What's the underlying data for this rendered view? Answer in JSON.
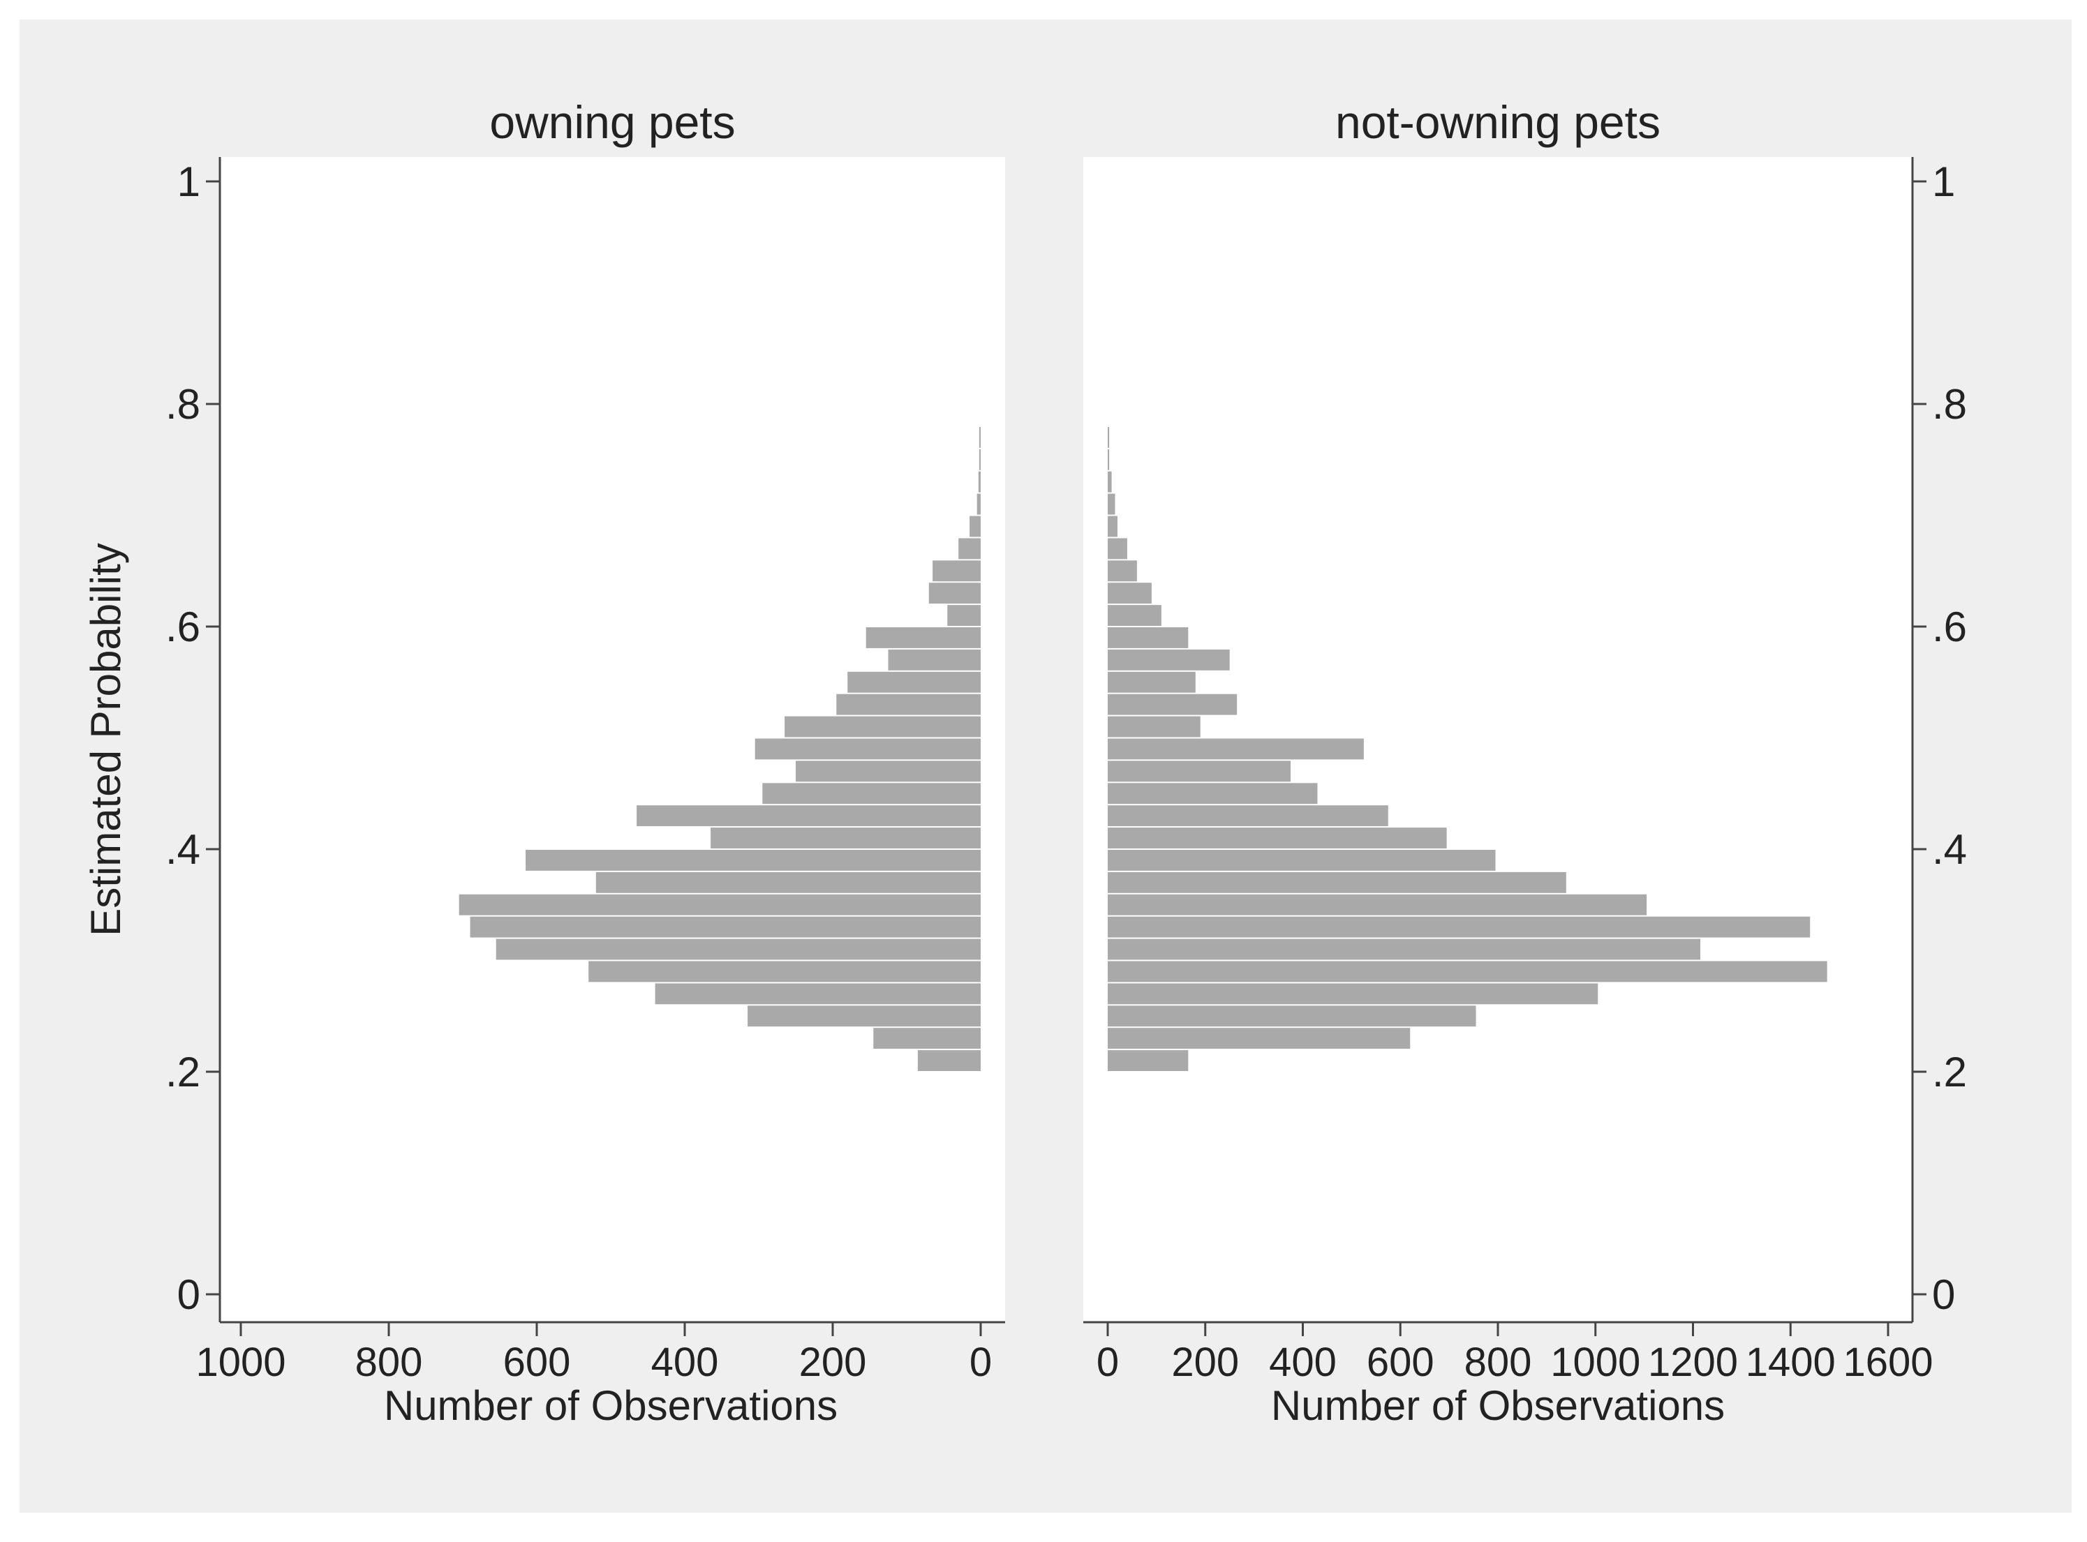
{
  "colors": {
    "outer": "#efefef",
    "panel": "#ffffff",
    "bar": "#a9a9a9",
    "axis": "#444444",
    "text": "#222222"
  },
  "ylabel": "Estimated Probability",
  "y_ticks": [
    "0",
    ".2",
    ".4",
    ".6",
    ".8",
    "1"
  ],
  "chart_data": [
    {
      "type": "bar",
      "orientation": "horizontal",
      "direction": "reversed",
      "title": "owning pets",
      "xlabel": "Number of Observations",
      "ylabel": "Estimated Probability",
      "xlim": [
        1000,
        0
      ],
      "ylim": [
        0,
        1
      ],
      "x_ticks": [
        "1000",
        "800",
        "600",
        "400",
        "200",
        "0"
      ],
      "bin_width": 0.02,
      "grid": false,
      "bars": [
        {
          "y0": 0.2,
          "value": 85
        },
        {
          "y0": 0.22,
          "value": 145
        },
        {
          "y0": 0.24,
          "value": 315
        },
        {
          "y0": 0.26,
          "value": 440
        },
        {
          "y0": 0.28,
          "value": 530
        },
        {
          "y0": 0.3,
          "value": 655
        },
        {
          "y0": 0.32,
          "value": 690
        },
        {
          "y0": 0.34,
          "value": 705
        },
        {
          "y0": 0.36,
          "value": 520
        },
        {
          "y0": 0.38,
          "value": 615
        },
        {
          "y0": 0.4,
          "value": 365
        },
        {
          "y0": 0.42,
          "value": 465
        },
        {
          "y0": 0.44,
          "value": 295
        },
        {
          "y0": 0.46,
          "value": 250
        },
        {
          "y0": 0.48,
          "value": 305
        },
        {
          "y0": 0.5,
          "value": 265
        },
        {
          "y0": 0.52,
          "value": 195
        },
        {
          "y0": 0.54,
          "value": 180
        },
        {
          "y0": 0.56,
          "value": 125
        },
        {
          "y0": 0.58,
          "value": 155
        },
        {
          "y0": 0.6,
          "value": 45
        },
        {
          "y0": 0.62,
          "value": 70
        },
        {
          "y0": 0.64,
          "value": 65
        },
        {
          "y0": 0.66,
          "value": 30
        },
        {
          "y0": 0.68,
          "value": 15
        },
        {
          "y0": 0.7,
          "value": 5
        },
        {
          "y0": 0.72,
          "value": 3
        },
        {
          "y0": 0.74,
          "value": 2
        },
        {
          "y0": 0.76,
          "value": 2
        }
      ]
    },
    {
      "type": "bar",
      "orientation": "horizontal",
      "title": "not-owning pets",
      "xlabel": "Number of Observations",
      "ylabel": "Estimated Probability",
      "xlim": [
        0,
        1600
      ],
      "ylim": [
        0,
        1
      ],
      "x_ticks": [
        "0",
        "200",
        "400",
        "600",
        "800",
        "1000",
        "1200",
        "1400",
        "1600"
      ],
      "bin_width": 0.02,
      "grid": false,
      "bars": [
        {
          "y0": 0.2,
          "value": 165
        },
        {
          "y0": 0.22,
          "value": 620
        },
        {
          "y0": 0.24,
          "value": 755
        },
        {
          "y0": 0.26,
          "value": 1005
        },
        {
          "y0": 0.28,
          "value": 1475
        },
        {
          "y0": 0.3,
          "value": 1215
        },
        {
          "y0": 0.32,
          "value": 1440
        },
        {
          "y0": 0.34,
          "value": 1105
        },
        {
          "y0": 0.36,
          "value": 940
        },
        {
          "y0": 0.38,
          "value": 795
        },
        {
          "y0": 0.4,
          "value": 695
        },
        {
          "y0": 0.42,
          "value": 575
        },
        {
          "y0": 0.44,
          "value": 430
        },
        {
          "y0": 0.46,
          "value": 375
        },
        {
          "y0": 0.48,
          "value": 525
        },
        {
          "y0": 0.5,
          "value": 190
        },
        {
          "y0": 0.52,
          "value": 265
        },
        {
          "y0": 0.54,
          "value": 180
        },
        {
          "y0": 0.56,
          "value": 250
        },
        {
          "y0": 0.58,
          "value": 165
        },
        {
          "y0": 0.6,
          "value": 110
        },
        {
          "y0": 0.62,
          "value": 90
        },
        {
          "y0": 0.64,
          "value": 60
        },
        {
          "y0": 0.66,
          "value": 40
        },
        {
          "y0": 0.68,
          "value": 20
        },
        {
          "y0": 0.7,
          "value": 15
        },
        {
          "y0": 0.72,
          "value": 8
        },
        {
          "y0": 0.74,
          "value": 3
        },
        {
          "y0": 0.76,
          "value": 3
        }
      ]
    }
  ]
}
